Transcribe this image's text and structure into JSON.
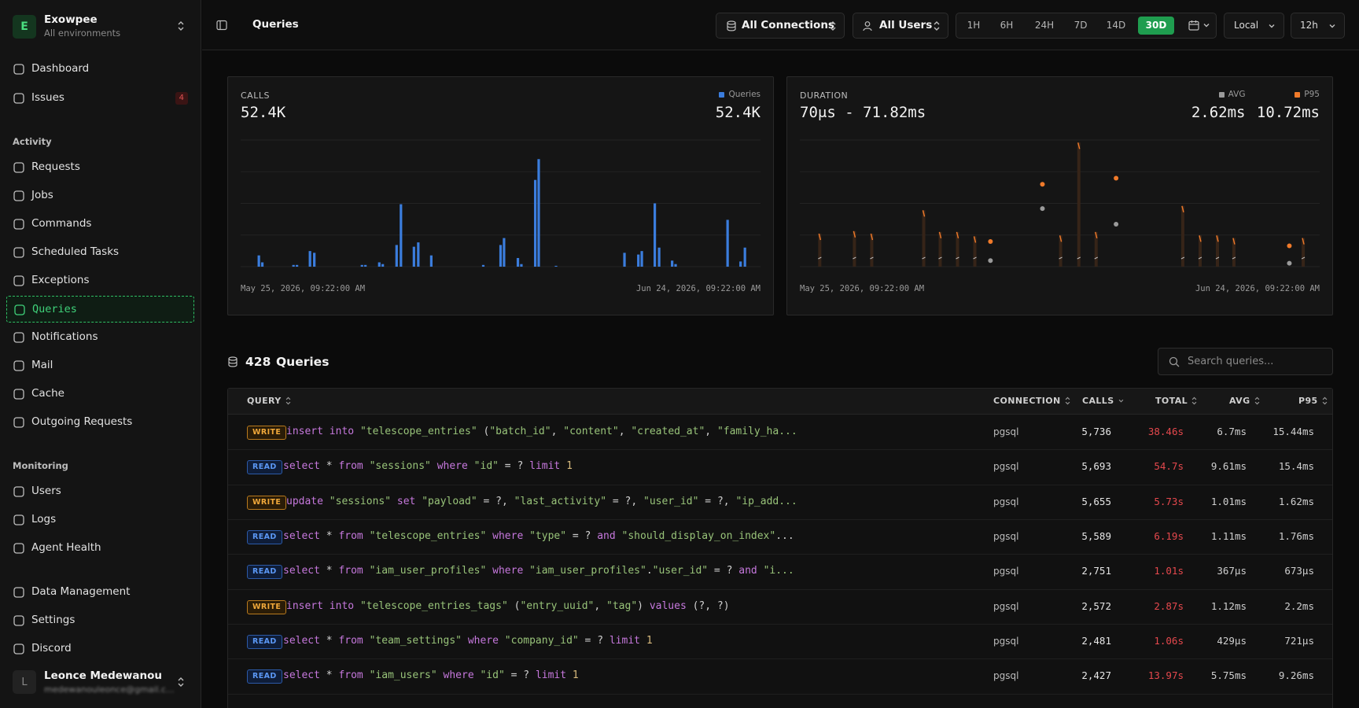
{
  "sidebar": {
    "org": {
      "initial": "E",
      "name": "Exowpee",
      "subtitle": "All environments"
    },
    "nav": [
      {
        "label": "Dashboard"
      },
      {
        "label": "Issues",
        "badge": "4"
      }
    ],
    "sections": [
      {
        "title": "Activity",
        "items": [
          "Requests",
          "Jobs",
          "Commands",
          "Scheduled Tasks",
          "Exceptions",
          "Queries",
          "Notifications",
          "Mail",
          "Cache",
          "Outgoing Requests"
        ]
      },
      {
        "title": "Monitoring",
        "items": [
          "Users",
          "Logs",
          "Agent Health"
        ]
      }
    ],
    "footer_items": [
      "Data Management",
      "Settings",
      "Discord"
    ],
    "user": {
      "initial": "L",
      "name": "Leonce Medewanou",
      "email": "medewanouleonce@gmail.c..."
    }
  },
  "topbar": {
    "title": "Queries",
    "connections": "All Connections",
    "users": "All Users",
    "ranges": [
      "1H",
      "6H",
      "24H",
      "7D",
      "14D",
      "30D"
    ],
    "active_range": 5,
    "timezone": "Local",
    "clock": "12h"
  },
  "charts": [
    {
      "type": "bar",
      "title": "CALLS",
      "summary": "52.4K",
      "x_start": "May 25, 2026, 09:22:00 AM",
      "x_end": "Jun 24, 2026, 09:22:00 AM",
      "xlim": [
        0,
        30
      ],
      "ylim": [
        0,
        146
      ],
      "series": [
        {
          "name": "Queries",
          "color": "#3b7ddd",
          "summary": "52.4K",
          "x": [
            1.05,
            1.25,
            3.05,
            3.25,
            4.0,
            4.25,
            7.0,
            7.2,
            8.0,
            8.2,
            9.0,
            9.25,
            10.0,
            10.25,
            11.0,
            14.0,
            15.0,
            15.2,
            16.0,
            16.2,
            17.0,
            17.2,
            18.2,
            22.15,
            22.95,
            23.15,
            23.9,
            24.15,
            24.9,
            25.1,
            28.1,
            28.85,
            29.1
          ],
          "values": [
            13,
            5,
            2,
            2,
            18,
            16,
            2,
            2,
            5,
            3,
            25,
            72,
            23,
            28,
            13,
            2,
            25,
            33,
            10,
            3,
            100,
            124,
            1,
            16,
            14,
            18,
            73,
            22,
            7,
            3,
            54,
            6,
            22
          ]
        }
      ]
    },
    {
      "type": "range-scatter",
      "title": "DURATION",
      "summary": "70μs - 71.82ms",
      "x_start": "May 25, 2026, 09:22:00 AM",
      "x_end": "Jun 24, 2026, 09:22:00 AM",
      "xlim": [
        0,
        30
      ],
      "ylim": [
        0,
        146
      ],
      "ranges": {
        "color": "#f07a2a",
        "x": [
          1.15,
          3.15,
          4.15,
          7.15,
          8.1,
          9.1,
          10.1,
          15.05,
          16.1,
          17.1,
          22.1,
          23.1,
          24.1,
          25.05,
          29.05
        ],
        "values": [
          38,
          41,
          38,
          65,
          40,
          40,
          35,
          36,
          143,
          40,
          70,
          36,
          36,
          33,
          33
        ]
      },
      "series": [
        {
          "name": "AVG",
          "color": "#9a9a9a",
          "summary": "2.62ms",
          "x": [
            11.0,
            14.0,
            18.25,
            28.25
          ],
          "values": [
            7,
            67,
            49,
            4
          ]
        },
        {
          "name": "P95",
          "color": "#f07a2a",
          "summary": "10.72ms",
          "x": [
            11.0,
            14.0,
            18.25,
            28.25
          ],
          "values": [
            29,
            95,
            102,
            24
          ]
        }
      ]
    }
  ],
  "list": {
    "count": "428",
    "title": "Queries",
    "search_placeholder": "Search queries...",
    "columns": [
      "QUERY",
      "CONNECTION",
      "CALLS",
      "TOTAL",
      "AVG",
      "P95"
    ],
    "sort": {
      "column": 2,
      "direction": "desc"
    },
    "rows": [
      [
        "WRITE",
        "insert into \"telescope_entries\" (\"batch_id\", \"content\", \"created_at\", \"family_ha...",
        "pgsql",
        "5,736",
        "38.46s",
        "6.7ms",
        "15.44ms"
      ],
      [
        "READ",
        "select * from \"sessions\" where \"id\" = ? limit 1",
        "pgsql",
        "5,693",
        "54.7s",
        "9.61ms",
        "15.4ms"
      ],
      [
        "WRITE",
        "update \"sessions\" set \"payload\" = ?, \"last_activity\" = ?, \"user_id\" = ?, \"ip_add...",
        "pgsql",
        "5,655",
        "5.73s",
        "1.01ms",
        "1.62ms"
      ],
      [
        "READ",
        "select * from \"telescope_entries\" where \"type\" = ? and \"should_display_on_index\"...",
        "pgsql",
        "5,589",
        "6.19s",
        "1.11ms",
        "1.76ms"
      ],
      [
        "READ",
        "select * from \"iam_user_profiles\" where \"iam_user_profiles\".\"user_id\" = ? and \"i...",
        "pgsql",
        "2,751",
        "1.01s",
        "367μs",
        "673μs"
      ],
      [
        "WRITE",
        "insert into \"telescope_entries_tags\" (\"entry_uuid\", \"tag\") values (?, ?)",
        "pgsql",
        "2,572",
        "2.87s",
        "1.12ms",
        "2.2ms"
      ],
      [
        "READ",
        "select * from \"team_settings\" where \"company_id\" = ? limit 1",
        "pgsql",
        "2,481",
        "1.06s",
        "429μs",
        "721μs"
      ],
      [
        "READ",
        "select * from \"iam_users\" where \"id\" = ? limit 1",
        "pgsql",
        "2,427",
        "13.97s",
        "5.75ms",
        "9.26ms"
      ]
    ]
  }
}
